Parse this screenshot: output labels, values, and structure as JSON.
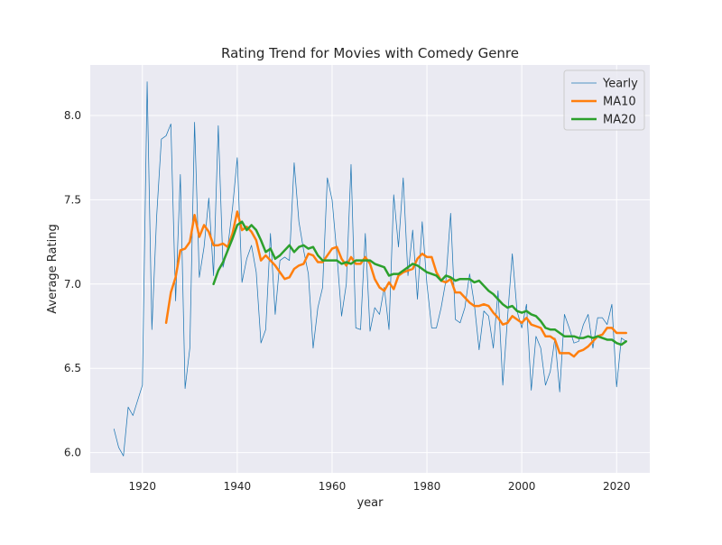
{
  "chart_data": {
    "type": "line",
    "title": "Rating Trend for Movies with Comedy Genre",
    "xlabel": "year",
    "ylabel": "Average Rating",
    "xlim": [
      1909,
      2027
    ],
    "ylim": [
      5.88,
      8.3
    ],
    "x_ticks": [
      1920,
      1940,
      1960,
      1980,
      2000,
      2020
    ],
    "x_tick_labels": [
      "1920",
      "1940",
      "1960",
      "1980",
      "2000",
      "2020"
    ],
    "y_ticks": [
      6.0,
      6.5,
      7.0,
      7.5,
      8.0
    ],
    "y_tick_labels": [
      "6.0",
      "6.5",
      "7.0",
      "7.5",
      "8.0"
    ],
    "grid": true,
    "legend_position": "top-right",
    "background_color": "#eaeaf2",
    "series": [
      {
        "name": "Yearly",
        "color": "#1f77b4",
        "line_width": 0.75,
        "x": [
          1914,
          1915,
          1916,
          1917,
          1918,
          1919,
          1920,
          1921,
          1922,
          1923,
          1924,
          1925,
          1926,
          1927,
          1928,
          1929,
          1930,
          1931,
          1932,
          1933,
          1934,
          1935,
          1936,
          1937,
          1938,
          1939,
          1940,
          1941,
          1942,
          1943,
          1944,
          1945,
          1946,
          1947,
          1948,
          1949,
          1950,
          1951,
          1952,
          1953,
          1954,
          1955,
          1956,
          1957,
          1958,
          1959,
          1960,
          1961,
          1962,
          1963,
          1964,
          1965,
          1966,
          1967,
          1968,
          1969,
          1970,
          1971,
          1972,
          1973,
          1974,
          1975,
          1976,
          1977,
          1978,
          1979,
          1980,
          1981,
          1982,
          1983,
          1984,
          1985,
          1986,
          1987,
          1988,
          1989,
          1990,
          1991,
          1992,
          1993,
          1994,
          1995,
          1996,
          1997,
          1998,
          1999,
          2000,
          2001,
          2002,
          2003,
          2004,
          2005,
          2006,
          2007,
          2008,
          2009,
          2010,
          2011,
          2012,
          2013,
          2014,
          2015,
          2016,
          2017,
          2018,
          2019,
          2020,
          2021,
          2022
        ],
        "y": [
          6.14,
          6.03,
          5.98,
          6.27,
          6.22,
          6.31,
          6.4,
          8.2,
          6.73,
          7.4,
          7.86,
          7.88,
          7.95,
          6.9,
          7.65,
          6.38,
          6.62,
          7.96,
          7.04,
          7.22,
          7.51,
          7.05,
          7.94,
          7.1,
          7.22,
          7.45,
          7.75,
          7.01,
          7.15,
          7.23,
          7.07,
          6.65,
          6.73,
          7.3,
          6.82,
          7.14,
          7.16,
          7.14,
          7.72,
          7.37,
          7.2,
          7.06,
          6.62,
          6.86,
          6.98,
          7.63,
          7.5,
          7.18,
          6.81,
          7.0,
          7.71,
          6.74,
          6.73,
          7.3,
          6.72,
          6.86,
          6.82,
          6.98,
          6.73,
          7.53,
          7.22,
          7.63,
          7.05,
          7.32,
          6.91,
          7.37,
          7.0,
          6.74,
          6.74,
          6.86,
          7.02,
          7.42,
          6.79,
          6.77,
          6.86,
          7.06,
          6.88,
          6.61,
          6.84,
          6.81,
          6.62,
          6.96,
          6.4,
          6.8,
          7.18,
          6.84,
          6.74,
          6.88,
          6.37,
          6.69,
          6.62,
          6.4,
          6.48,
          6.68,
          6.36,
          6.82,
          6.74,
          6.65,
          6.66,
          6.76,
          6.82,
          6.62,
          6.8,
          6.8,
          6.76,
          6.88,
          6.39,
          6.68,
          6.66
        ]
      },
      {
        "name": "MA10",
        "color": "#ff7f0e",
        "line_width": 2.5,
        "x": [
          1925,
          1926,
          1927,
          1928,
          1929,
          1930,
          1931,
          1932,
          1933,
          1934,
          1935,
          1936,
          1937,
          1938,
          1939,
          1940,
          1941,
          1942,
          1943,
          1944,
          1945,
          1946,
          1947,
          1948,
          1949,
          1950,
          1951,
          1952,
          1953,
          1954,
          1955,
          1956,
          1957,
          1958,
          1959,
          1960,
          1961,
          1962,
          1963,
          1964,
          1965,
          1966,
          1967,
          1968,
          1969,
          1970,
          1971,
          1972,
          1973,
          1974,
          1975,
          1976,
          1977,
          1978,
          1979,
          1980,
          1981,
          1982,
          1983,
          1984,
          1985,
          1986,
          1987,
          1988,
          1989,
          1990,
          1991,
          1992,
          1993,
          1994,
          1995,
          1996,
          1997,
          1998,
          1999,
          2000,
          2001,
          2002,
          2003,
          2004,
          2005,
          2006,
          2007,
          2008,
          2009,
          2010,
          2011,
          2012,
          2013,
          2014,
          2015,
          2016,
          2017,
          2018,
          2019,
          2020,
          2021,
          2022
        ],
        "y": [
          6.77,
          6.95,
          7.04,
          7.2,
          7.21,
          7.25,
          7.41,
          7.28,
          7.35,
          7.31,
          7.23,
          7.23,
          7.24,
          7.22,
          7.3,
          7.43,
          7.32,
          7.34,
          7.31,
          7.26,
          7.14,
          7.17,
          7.14,
          7.11,
          7.07,
          7.03,
          7.04,
          7.09,
          7.11,
          7.12,
          7.18,
          7.17,
          7.13,
          7.13,
          7.17,
          7.21,
          7.22,
          7.15,
          7.11,
          7.16,
          7.12,
          7.12,
          7.16,
          7.12,
          7.03,
          6.98,
          6.96,
          7.01,
          6.97,
          7.05,
          7.07,
          7.08,
          7.09,
          7.15,
          7.18,
          7.16,
          7.16,
          7.07,
          7.02,
          7.01,
          7.03,
          6.95,
          6.95,
          6.92,
          6.89,
          6.87,
          6.87,
          6.88,
          6.87,
          6.83,
          6.8,
          6.76,
          6.77,
          6.81,
          6.79,
          6.77,
          6.8,
          6.76,
          6.75,
          6.74,
          6.69,
          6.69,
          6.67,
          6.59,
          6.59,
          6.59,
          6.57,
          6.6,
          6.61,
          6.63,
          6.66,
          6.69,
          6.7,
          6.74,
          6.74,
          6.71,
          6.71,
          6.71
        ]
      },
      {
        "name": "MA20",
        "color": "#2ca02c",
        "line_width": 2.5,
        "x": [
          1935,
          1936,
          1937,
          1938,
          1939,
          1940,
          1941,
          1942,
          1943,
          1944,
          1945,
          1946,
          1947,
          1948,
          1949,
          1950,
          1951,
          1952,
          1953,
          1954,
          1955,
          1956,
          1957,
          1958,
          1959,
          1960,
          1961,
          1962,
          1963,
          1964,
          1965,
          1966,
          1967,
          1968,
          1969,
          1970,
          1971,
          1972,
          1973,
          1974,
          1975,
          1976,
          1977,
          1978,
          1979,
          1980,
          1981,
          1982,
          1983,
          1984,
          1985,
          1986,
          1987,
          1988,
          1989,
          1990,
          1991,
          1992,
          1993,
          1994,
          1995,
          1996,
          1997,
          1998,
          1999,
          2000,
          2001,
          2002,
          2003,
          2004,
          2005,
          2006,
          2007,
          2008,
          2009,
          2010,
          2011,
          2012,
          2013,
          2014,
          2015,
          2016,
          2017,
          2018,
          2019,
          2020,
          2021,
          2022
        ],
        "y": [
          7.0,
          7.08,
          7.13,
          7.2,
          7.27,
          7.35,
          7.37,
          7.32,
          7.35,
          7.32,
          7.26,
          7.19,
          7.21,
          7.15,
          7.17,
          7.2,
          7.23,
          7.19,
          7.22,
          7.23,
          7.21,
          7.22,
          7.17,
          7.14,
          7.14,
          7.14,
          7.14,
          7.12,
          7.13,
          7.12,
          7.14,
          7.14,
          7.14,
          7.14,
          7.12,
          7.11,
          7.1,
          7.05,
          7.06,
          7.06,
          7.08,
          7.1,
          7.12,
          7.11,
          7.09,
          7.07,
          7.06,
          7.05,
          7.02,
          7.05,
          7.04,
          7.02,
          7.03,
          7.03,
          7.03,
          7.01,
          7.02,
          6.99,
          6.96,
          6.94,
          6.91,
          6.88,
          6.86,
          6.87,
          6.84,
          6.83,
          6.84,
          6.82,
          6.81,
          6.78,
          6.74,
          6.73,
          6.73,
          6.71,
          6.69,
          6.69,
          6.69,
          6.68,
          6.68,
          6.69,
          6.68,
          6.69,
          6.68,
          6.67,
          6.67,
          6.65,
          6.64,
          6.66
        ]
      }
    ]
  }
}
